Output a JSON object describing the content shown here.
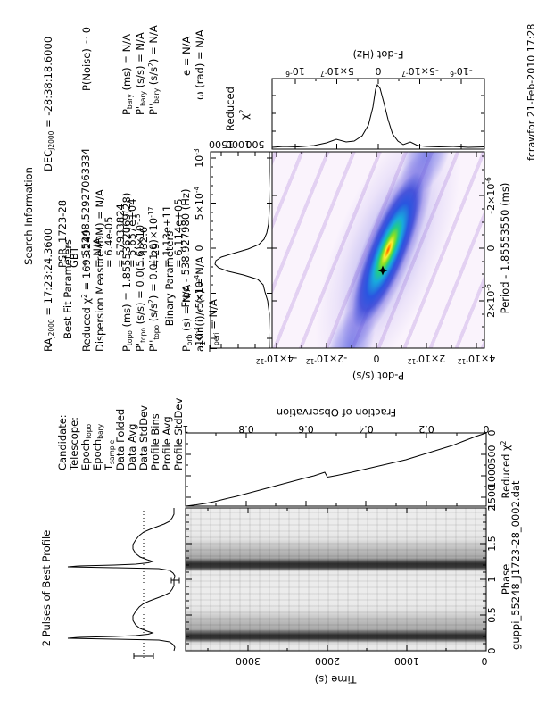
{
  "page": {
    "user_stamp": "fcrawfor 21-Feb-2010 17:28",
    "filename": "guppi_55248_J1723-28_0002.dat"
  },
  "left_info": {
    "rows": [
      {
        "label": "Candidate:",
        "value": "PSR_1723-28"
      },
      {
        "label": "Telescope:",
        "value": "GBT"
      },
      {
        "label": "Epoch~topo~",
        "value": "= 55248.52927063334"
      },
      {
        "label": "Epoch~bary~",
        "value": "= N/A"
      },
      {
        "label": "T~sample~",
        "value": "= 6.4e-05"
      },
      {
        "label": "Data Folded",
        "value": "= 57933824"
      },
      {
        "label": "Data Avg",
        "value": "= 5.657e+04"
      },
      {
        "label": "Data StdDev",
        "value": "= 432.6"
      },
      {
        "label": "Profile Bins",
        "value": "= 29"
      },
      {
        "label": "Profile Avg",
        "value": "= 1.13e+11"
      },
      {
        "label": "Profile StdDev",
        "value": "= 6.114e+05"
      }
    ]
  },
  "search_info": {
    "title": "Search Information",
    "ra": "RA~J2000~ = 17:23:24.3600",
    "dec": "DEC~J2000~ = -28:38:18.6000",
    "best_fit_header": "Best Fit Parameters",
    "reduced_chi2": "Reduced χ^2^ = 1693.249",
    "p_noise": "P(Noise) ~ 0",
    "dm": "Dispersion Measure (DM) = N/A",
    "p_topo": "P~topo~ (ms) = 1.8555362069(28)",
    "p_bary": "P~bary~ (ms) = N/A",
    "pd_topo": "P'~topo~ (s/s) = 0.0(5.6)×10^-15^",
    "pd_bary": "P'~bary~ (s/s) = N/A",
    "pdd_topo": "P''~topo~ (s/s^2^) = 0.0(1.0)×10^-17^",
    "pdd_bary": "P''~bary~ (s/s^2^) = N/A",
    "binary_header": "Binary Parameters",
    "p_orb": "P~orb~ (s) = N/A",
    "ecc": "e = N/A",
    "asini": "a~1~sin(i)/c (s) = N/A",
    "omega": "ω (rad) = N/A",
    "t_peri": "T~peri~ = N/A"
  },
  "profile_panel": {
    "title": "2 Pulses of Best Profile"
  },
  "phase_time_panel": {
    "xlabel": "Phase",
    "ylabel": "Time (s)",
    "phase_ticks": [
      "0",
      "0.5",
      "1",
      "1.5",
      "2"
    ],
    "time_ticks": [
      "3000",
      "2000",
      "1000",
      "0"
    ]
  },
  "chi2_fraction_panel": {
    "xlabel": "Reduced χ^2^",
    "ylabel": "Fraction of Observation",
    "chi2_ticks": [
      "1500",
      "1000",
      "500",
      "0"
    ],
    "fraction_ticks": [
      "1",
      "0.8",
      "0.6",
      "0.4",
      "0.2",
      "0"
    ]
  },
  "period_chi2_panel": {
    "top_axis_label": "Freq - 538.927980 (Hz)",
    "freq_ticks": [
      "-10^-3^",
      "-5×10^-4^",
      "0",
      "5×10^-4^",
      "10^-3^"
    ],
    "chi2_label_line1": "Reduced",
    "chi2_label_line2": "χ^2^",
    "chi2_ticks": [
      "1500",
      "1000",
      "500"
    ]
  },
  "p_pdot_map": {
    "xlabel": "Period - 1.85553550 (ms)",
    "ylabel": "P-dot (s/s)",
    "period_ticks": [
      "2×10^-6^",
      "0",
      "-2×10^-6^"
    ],
    "pdot_ticks": [
      "-4×10^-12^",
      "-2×10^-12^",
      "0",
      "2×10^-12^",
      "4×10^-12^"
    ],
    "map_colors": [
      "#faf3fc",
      "#c8a8e8",
      "#2a3fd8",
      "#18aadd",
      "#33cc77",
      "#aaee22",
      "#ffee33",
      "#ff8800",
      "#ff4411"
    ]
  },
  "pdot_chi2_panel": {
    "right_axis_label": "F-dot (Hz)",
    "fdot_ticks": [
      "10^-6^",
      "5×10^-7^",
      "0",
      "-5×10^-7^",
      "-10^-6^"
    ]
  },
  "chart_data": [
    {
      "id": "best_profile",
      "type": "line",
      "title": "2 Pulses of Best Profile",
      "xlabel": "phase",
      "x_range": [
        0,
        2
      ],
      "note": "folded pulse profile shown for two periods; sharp narrow peak at phase 0.18 with broad trailing shoulder to phase 0.55; dotted horizontal line = profile mean; small 1-sigma error bars drawn",
      "points_phase_intensity": [
        [
          0,
          0.02
        ],
        [
          0.13,
          0.06
        ],
        [
          0.18,
          1.0
        ],
        [
          0.22,
          0.22
        ],
        [
          0.3,
          0.36
        ],
        [
          0.38,
          0.4
        ],
        [
          0.45,
          0.34
        ],
        [
          0.55,
          0.18
        ],
        [
          0.65,
          0.05
        ],
        [
          0.8,
          0.01
        ],
        [
          1.0,
          0.02
        ],
        [
          1.18,
          1.0
        ],
        [
          1.38,
          0.4
        ],
        [
          1.55,
          0.18
        ],
        [
          1.8,
          0.01
        ],
        [
          2.0,
          0.02
        ]
      ]
    },
    {
      "id": "phase_time",
      "type": "heatmap",
      "xlabel": "Phase",
      "ylabel": "Time (s)",
      "x_range": [
        0,
        2
      ],
      "y_range": [
        0,
        3787
      ],
      "note": "grayscale sub-integration intensity; dark persistent bands at phase 0.18 and 1.18 with lighter trailing shoulder, present for the whole observation"
    },
    {
      "id": "chi2_vs_fraction",
      "type": "line",
      "xlabel": "Reduced χ2",
      "ylabel": "Fraction of Observation",
      "x_range": [
        0,
        1693
      ],
      "y_range": [
        0,
        1
      ],
      "points_fraction_chi2": [
        [
          0,
          0
        ],
        [
          0.1,
          300
        ],
        [
          0.2,
          560
        ],
        [
          0.3,
          790
        ],
        [
          0.4,
          990
        ],
        [
          0.5,
          1140
        ],
        [
          0.53,
          1190
        ],
        [
          0.56,
          1080
        ],
        [
          0.6,
          1180
        ],
        [
          0.7,
          1330
        ],
        [
          0.8,
          1470
        ],
        [
          0.9,
          1590
        ],
        [
          1.0,
          1693
        ]
      ],
      "note": "cumulative reduced chi-square growth with small dip near fraction 0.54"
    },
    {
      "id": "chi2_vs_period",
      "type": "line",
      "xlabel": "Period offset (ms, axis reversed); top axis Freq - 538.927980 (Hz)",
      "ylabel": "Reduced χ2",
      "y_range": [
        0,
        1800
      ],
      "peak": {
        "offset": 0,
        "chi2": 1693
      },
      "baseline": 30,
      "note": "sharp peak at zero offset with small sidelobes"
    },
    {
      "id": "p_pdot_plane",
      "type": "heatmap",
      "xlabel": "Period - 1.85553550 (ms)",
      "ylabel": "P-dot (s/s)",
      "x_range_ms": [
        2.2e-06,
        -2.2e-06
      ],
      "y_range_ss": [
        -4.3e-12,
        4.3e-12
      ],
      "note": "chi-square surface; elongated diagonal rainbow ridge (blue-cyan-green-yellow-red core) through best solution marked by black star, on pale violet striped background"
    },
    {
      "id": "chi2_vs_pdot",
      "type": "line",
      "right_axis": "F-dot (Hz)",
      "fdot_range": [
        1.28e-06,
        -1.28e-06
      ],
      "peak": {
        "offset": 0,
        "chi2": 1693
      },
      "baseline": 30,
      "note": "sideways curve, peak points right at F-dot = 0"
    }
  ]
}
